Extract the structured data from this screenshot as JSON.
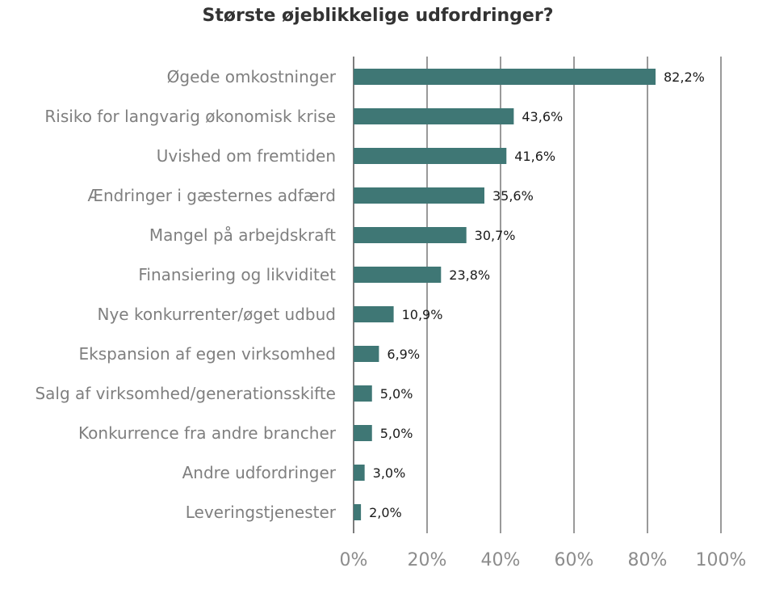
{
  "chart_data": {
    "type": "bar",
    "orientation": "horizontal",
    "title": "Største øjeblikkelige udfordringer?",
    "categories": [
      "Øgede omkostninger",
      "Risiko for langvarig økonomisk krise",
      "Uvished om fremtiden",
      "Ændringer i gæsternes adfærd",
      "Mangel på arbejdskraft",
      "Finansiering og likviditet",
      "Nye konkurrenter/øget udbud",
      "Ekspansion af egen virksomhed",
      "Salg af virksomhed/generationsskifte",
      "Konkurrence fra andre brancher",
      "Andre udfordringer",
      "Leveringstjenester"
    ],
    "values": [
      82.2,
      43.6,
      41.6,
      35.6,
      30.7,
      23.8,
      10.9,
      6.9,
      5.0,
      5.0,
      3.0,
      2.0
    ],
    "value_labels": [
      "82,2%",
      "43,6%",
      "41,6%",
      "35,6%",
      "30,7%",
      "23,8%",
      "10,9%",
      "6,9%",
      "5,0%",
      "5,0%",
      "3,0%",
      "2,0%"
    ],
    "xlim": [
      0,
      100
    ],
    "xticks": [
      0,
      20,
      40,
      60,
      80,
      100
    ],
    "xtick_labels": [
      "0%",
      "20%",
      "40%",
      "60%",
      "80%",
      "100%"
    ],
    "grid": "vertical",
    "legend": "none",
    "bar_color": "#3f7775",
    "grid_color": "#6e6e6e"
  }
}
